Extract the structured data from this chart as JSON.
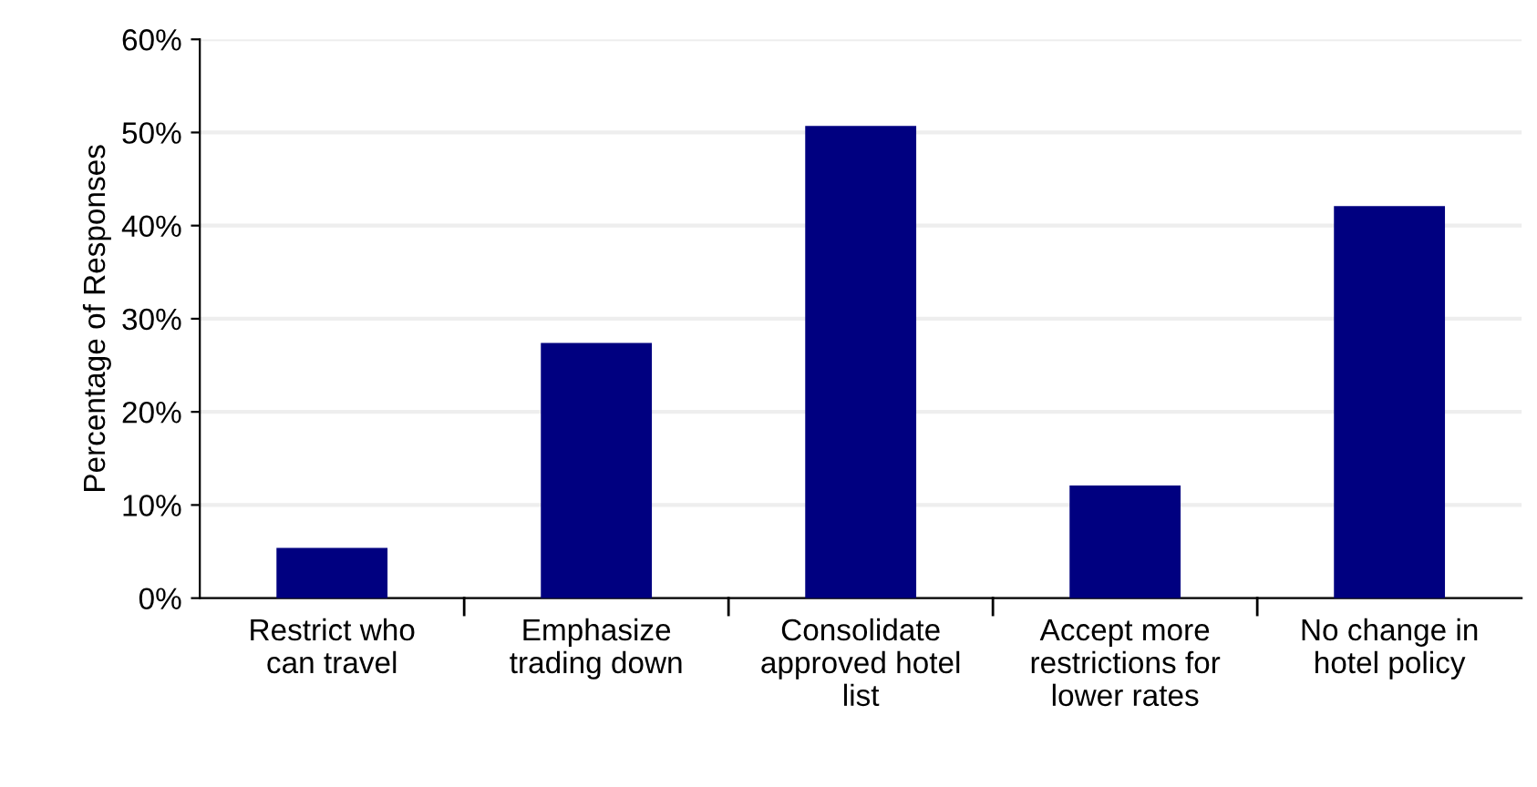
{
  "chart_data": {
    "type": "bar",
    "ylabel": "Percentage of Responses",
    "categories": [
      "Restrict who\ncan travel",
      "Emphasize\ntrading down",
      "Consolidate\napproved hotel\nlist",
      "Accept more\nrestrictions for\nlower rates",
      "No change in\nhotel policy"
    ],
    "values": [
      5.4,
      27.4,
      50.7,
      12.1,
      42.1
    ],
    "color": "#000080",
    "ylim": [
      0,
      60
    ],
    "yticks": [
      {
        "value": 0,
        "label": "0%"
      },
      {
        "value": 10,
        "label": "10%"
      },
      {
        "value": 20,
        "label": "20%"
      },
      {
        "value": 30,
        "label": "30%"
      },
      {
        "value": 40,
        "label": "40%"
      },
      {
        "value": 50,
        "label": "50%"
      },
      {
        "value": 60,
        "label": "60%"
      }
    ],
    "grid": "y"
  }
}
